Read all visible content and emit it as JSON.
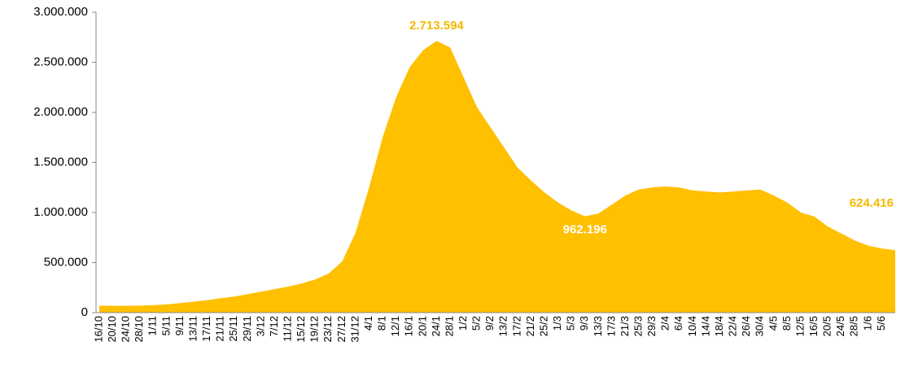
{
  "chart_data": {
    "type": "area",
    "color": "#ffc000",
    "categories": [
      "16/10",
      "20/10",
      "24/10",
      "28/10",
      "1/11",
      "5/11",
      "9/11",
      "13/11",
      "17/11",
      "21/11",
      "25/11",
      "29/11",
      "3/12",
      "7/12",
      "11/12",
      "15/12",
      "19/12",
      "23/12",
      "27/12",
      "31/12",
      "4/1",
      "8/1",
      "12/1",
      "16/1",
      "20/1",
      "24/1",
      "28/1",
      "1/2",
      "5/2",
      "9/2",
      "13/2",
      "17/2",
      "21/2",
      "25/2",
      "1/3",
      "5/3",
      "9/3",
      "13/3",
      "17/3",
      "21/3",
      "25/3",
      "29/3",
      "2/4",
      "6/4",
      "10/4",
      "14/4",
      "18/4",
      "22/4",
      "26/4",
      "30/4",
      "4/5",
      "8/5",
      "12/5",
      "16/5",
      "20/5",
      "24/5",
      "28/5",
      "1/6",
      "5/6",
      null
    ],
    "values": [
      70000,
      68000,
      68000,
      70000,
      75000,
      82000,
      95000,
      110000,
      125000,
      145000,
      160000,
      185000,
      210000,
      235000,
      260000,
      290000,
      330000,
      390000,
      510000,
      800000,
      1250000,
      1750000,
      2150000,
      2450000,
      2620000,
      2713594,
      2650000,
      2350000,
      2050000,
      1850000,
      1650000,
      1450000,
      1320000,
      1200000,
      1100000,
      1020000,
      962196,
      990000,
      1080000,
      1170000,
      1230000,
      1250000,
      1260000,
      1250000,
      1220000,
      1210000,
      1200000,
      1210000,
      1220000,
      1230000,
      1170000,
      1100000,
      1000000,
      960000,
      860000,
      790000,
      720000,
      670000,
      640000,
      624416
    ],
    "value_labels": [
      null,
      null,
      null,
      null,
      null,
      null,
      null,
      null,
      null,
      null,
      null,
      null,
      null,
      null,
      null,
      null,
      null,
      null,
      null,
      null,
      null,
      null,
      null,
      null,
      null,
      "2.713.594",
      null,
      null,
      null,
      null,
      null,
      null,
      null,
      null,
      null,
      null,
      "962.196",
      null,
      null,
      null,
      null,
      null,
      null,
      null,
      null,
      null,
      null,
      null,
      null,
      null,
      null,
      null,
      null,
      null,
      null,
      null,
      null,
      null,
      null,
      "624.416"
    ],
    "ylim": [
      0,
      3000000
    ],
    "yticks": [
      0,
      {
        "value": 500000,
        "label": "500.000"
      },
      {
        "value": 1000000,
        "label": "1.000.000"
      },
      {
        "value": 1500000,
        "label": "1.500.000"
      },
      {
        "value": 2000000,
        "label": "2.000.000"
      },
      {
        "value": 2500000,
        "label": "2.500.000"
      },
      {
        "value": 3000000,
        "label": "3.000.000"
      }
    ],
    "grid": false
  }
}
